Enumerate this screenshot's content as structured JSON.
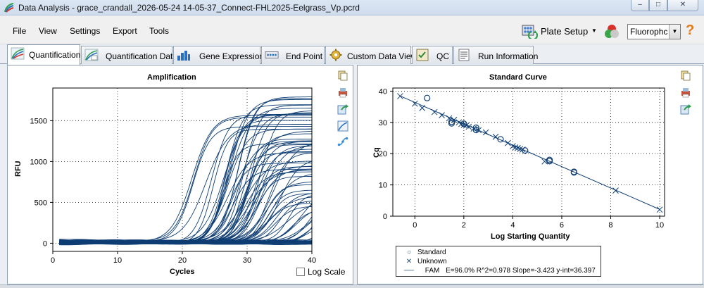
{
  "window": {
    "title": "Data Analysis - grace_crandall_2026-05-24 14-05-37_Connect-FHL2025-Eelgrass_Vp.pcrd",
    "minimize": "–",
    "maximize": "□",
    "close": "✕"
  },
  "menu": {
    "items": [
      "File",
      "View",
      "Settings",
      "Export",
      "Tools"
    ],
    "plate_setup": "Plate Setup",
    "fluorophore_value": "Fluorophc",
    "help": "?"
  },
  "tabs": [
    {
      "label": "Quantification",
      "active": true
    },
    {
      "label": "Quantification Data",
      "active": false
    },
    {
      "label": "Gene Expression",
      "active": false
    },
    {
      "label": "End Point",
      "active": false
    },
    {
      "label": "Custom Data View",
      "active": false
    },
    {
      "label": "QC",
      "active": false
    },
    {
      "label": "Run Information",
      "active": false
    }
  ],
  "colors": {
    "series": "#0e3d73",
    "accent": "#1f4a7a"
  },
  "log_scale_label": "Log Scale",
  "chart_data": [
    {
      "type": "line",
      "title": "Amplification",
      "xlabel": "Cycles",
      "ylabel": "RFU",
      "xlim": [
        0,
        40
      ],
      "ylim": [
        -100,
        1900
      ],
      "xticks": [
        0,
        10,
        20,
        30,
        40
      ],
      "yticks": [
        0,
        500,
        1000,
        1500
      ],
      "grid": true,
      "curve_groups": [
        {
          "ct_range": [
            17,
            21
          ],
          "plateau_range": [
            1300,
            1850
          ],
          "count": 6
        },
        {
          "ct_range": [
            22,
            25
          ],
          "plateau_range": [
            900,
            1800
          ],
          "count": 14
        },
        {
          "ct_range": [
            25,
            28
          ],
          "plateau_range": [
            800,
            1700
          ],
          "count": 20
        },
        {
          "ct_range": [
            28,
            33
          ],
          "plateau_range": [
            400,
            1300
          ],
          "count": 16
        },
        {
          "ct_range": [
            33,
            38
          ],
          "plateau_range": [
            150,
            700
          ],
          "count": 10
        },
        {
          "ct_range": null,
          "plateau_range": [
            -40,
            60
          ],
          "count": 30
        }
      ]
    },
    {
      "type": "scatter",
      "title": "Standard Curve",
      "xlabel": "Log Starting Quantity",
      "ylabel": "Cq",
      "xlim": [
        -0.9,
        10.2
      ],
      "ylim": [
        0,
        41
      ],
      "xticks": [
        0,
        2,
        4,
        6,
        8,
        10
      ],
      "yticks": [
        0,
        10,
        20,
        30,
        40
      ],
      "grid": true,
      "legend_position": "bottom",
      "legend": {
        "standard": "Standard",
        "unknown": "Unknown",
        "fit_name": "FAM",
        "fit_text": "E=96.0% R^2=0.978 Slope=-3.423 y-int=36.397"
      },
      "fit": {
        "slope": -3.423,
        "intercept": 36.397
      },
      "series": [
        {
          "name": "Standard",
          "marker": "circle",
          "points": [
            [
              0.5,
              37.8
            ],
            [
              1.5,
              30.2
            ],
            [
              1.5,
              29.7
            ],
            [
              2.0,
              29.6
            ],
            [
              2.5,
              28.3
            ],
            [
              2.5,
              27.6
            ],
            [
              3.5,
              24.6
            ],
            [
              4.5,
              21.0
            ],
            [
              5.5,
              18.0
            ],
            [
              5.5,
              17.6
            ],
            [
              6.5,
              14.2
            ],
            [
              6.5,
              14.0
            ]
          ]
        },
        {
          "name": "Unknown",
          "marker": "x",
          "points": [
            [
              -0.6,
              38.4
            ],
            [
              0.0,
              36.0
            ],
            [
              0.3,
              34.6
            ],
            [
              0.8,
              33.3
            ],
            [
              1.1,
              32.3
            ],
            [
              1.4,
              31.3
            ],
            [
              1.6,
              30.8
            ],
            [
              1.8,
              30.0
            ],
            [
              1.9,
              29.5
            ],
            [
              2.0,
              29.2
            ],
            [
              2.1,
              29.0
            ],
            [
              2.2,
              28.6
            ],
            [
              2.4,
              28.0
            ],
            [
              2.6,
              27.5
            ],
            [
              2.9,
              26.8
            ],
            [
              3.3,
              25.4
            ],
            [
              3.8,
              23.4
            ],
            [
              4.0,
              22.4
            ],
            [
              4.1,
              22.0
            ],
            [
              4.2,
              21.8
            ],
            [
              4.3,
              21.5
            ],
            [
              4.4,
              21.3
            ],
            [
              5.3,
              17.5
            ],
            [
              8.2,
              8.2
            ],
            [
              10.0,
              2.1
            ]
          ]
        }
      ]
    }
  ]
}
